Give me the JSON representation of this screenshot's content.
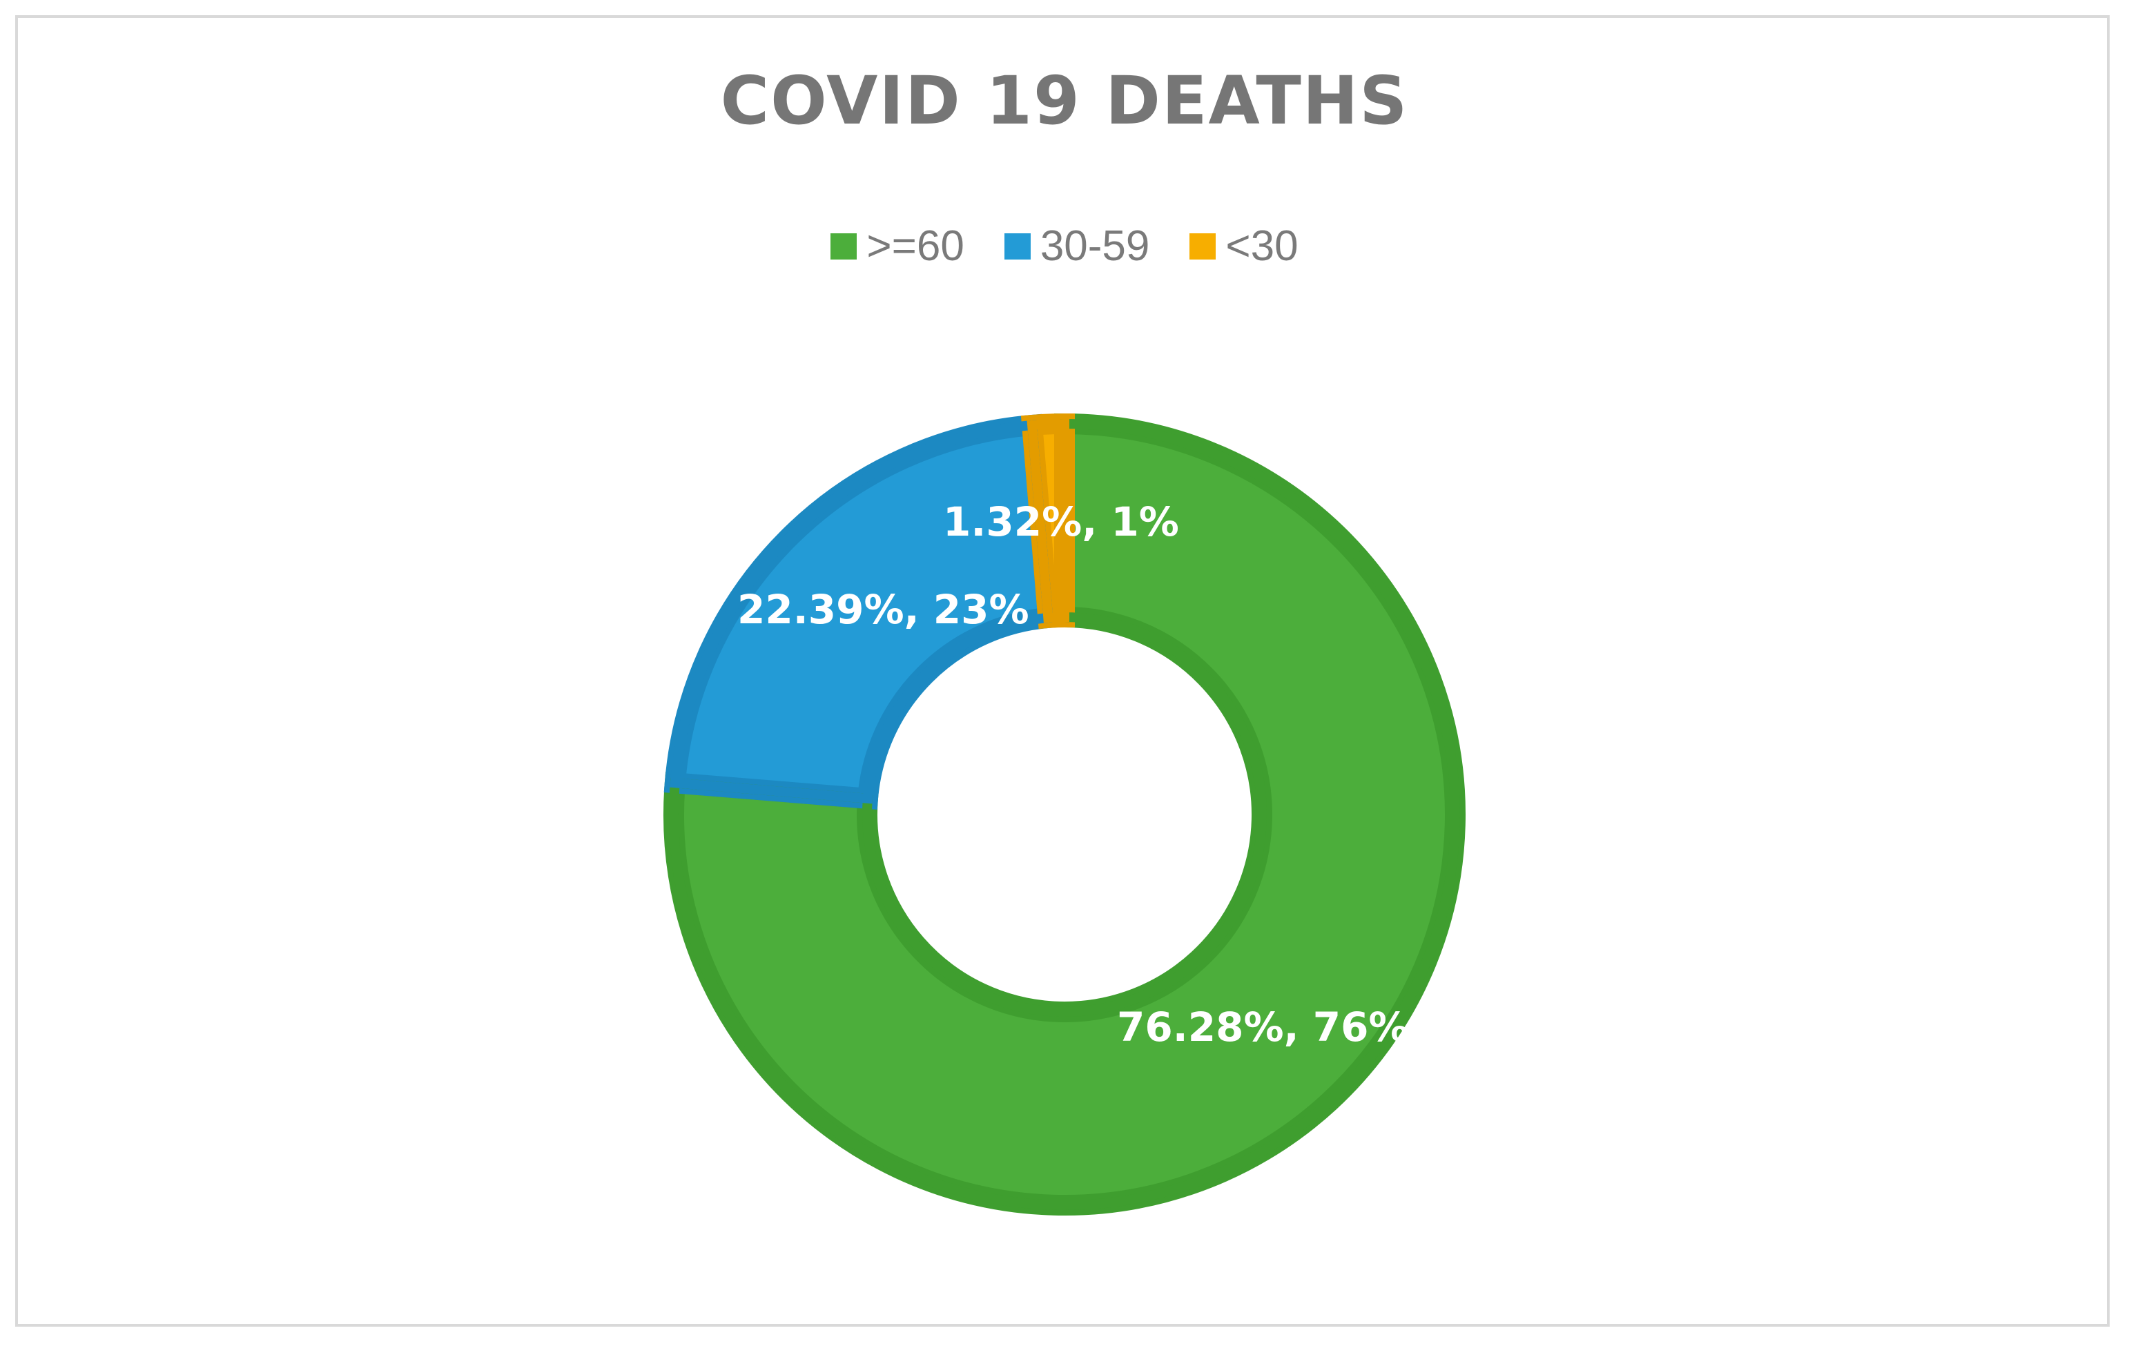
{
  "chart_data": {
    "type": "pie",
    "variant": "donut",
    "title": "COVID 19 DEATHS",
    "legend_position": "top",
    "categories": [
      ">=60",
      "30-59",
      "<30"
    ],
    "values": [
      76.28,
      22.39,
      1.32
    ],
    "unit": "%",
    "data_labels": [
      "76.28%, 76%",
      "22.39%, 23%",
      "1.32%, 1%"
    ],
    "colors": [
      "#4cae3b",
      "#239bd6",
      "#f7ae00"
    ],
    "border_colors": [
      "#3f9e2f",
      "#1c89c2",
      "#e39c00"
    ]
  }
}
